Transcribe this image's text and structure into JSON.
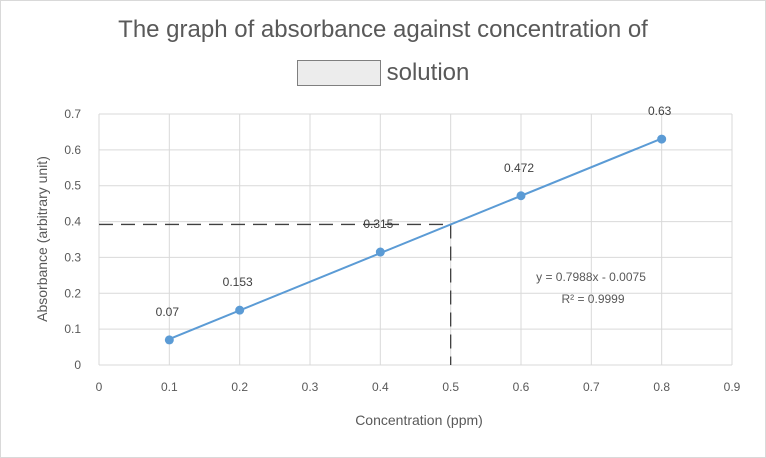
{
  "chart_data": {
    "type": "scatter",
    "title_line1": "The graph of absorbance against concentration of",
    "title_line2_suffix": "solution",
    "xlabel": "Concentration (ppm)",
    "ylabel": "Absorbance (arbitrary unit)",
    "xlim": [
      0,
      0.9
    ],
    "ylim": [
      0,
      0.7
    ],
    "x_ticks": [
      0,
      0.1,
      0.2,
      0.3,
      0.4,
      0.5,
      0.6,
      0.7,
      0.8,
      0.9
    ],
    "x_tick_labels": [
      "0",
      "0.1",
      "0.2",
      "0.3",
      "0.4",
      "0.5",
      "0.6",
      "0.7",
      "0.8",
      "0.9"
    ],
    "y_ticks": [
      0,
      0.1,
      0.2,
      0.3,
      0.4,
      0.5,
      0.6,
      0.7
    ],
    "y_tick_labels": [
      "0",
      "0.1",
      "0.2",
      "0.3",
      "0.4",
      "0.5",
      "0.6",
      "0.7"
    ],
    "grid": true,
    "series": [
      {
        "x": [
          0.1,
          0.2,
          0.4,
          0.6,
          0.8
        ],
        "y": [
          0.07,
          0.153,
          0.315,
          0.472,
          0.63
        ],
        "labels": [
          "0.07",
          "0.153",
          "0.315",
          "0.472",
          "0.63"
        ],
        "color": "#5b9bd5"
      }
    ],
    "trendline": {
      "slope": 0.7988,
      "intercept": -0.0075,
      "equation": "y = 0.7988x - 0.0075",
      "r_squared": "R² = 0.9999",
      "color": "#5b9bd5"
    },
    "reference_lines": {
      "x": 0.5,
      "y": 0.392,
      "style": "dashed",
      "color": "#404040"
    },
    "colors": {
      "grid": "#d9d9d9",
      "text": "#595959",
      "blank_box": "#ececec"
    }
  }
}
